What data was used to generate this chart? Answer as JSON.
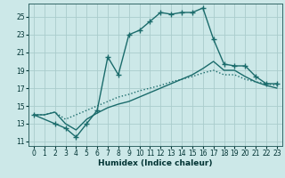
{
  "xlabel": "Humidex (Indice chaleur)",
  "background_color": "#cce8e8",
  "grid_color": "#aacccc",
  "line_color": "#1a6b6b",
  "xlim": [
    -0.5,
    23.5
  ],
  "ylim": [
    10.5,
    26.5
  ],
  "xticks": [
    0,
    1,
    2,
    3,
    4,
    5,
    6,
    7,
    8,
    9,
    10,
    11,
    12,
    13,
    14,
    15,
    16,
    17,
    18,
    19,
    20,
    21,
    22,
    23
  ],
  "yticks": [
    11,
    13,
    15,
    17,
    19,
    21,
    23,
    25
  ],
  "line_dotted_x": [
    0,
    1,
    2,
    3,
    4,
    5,
    6,
    7,
    8,
    9,
    10,
    11,
    12,
    13,
    14,
    15,
    16,
    17,
    18,
    19,
    20,
    21,
    22,
    23
  ],
  "line_dotted_y": [
    14.0,
    14.0,
    14.3,
    13.5,
    14.0,
    14.5,
    15.0,
    15.5,
    16.0,
    16.3,
    16.7,
    17.0,
    17.3,
    17.7,
    18.0,
    18.3,
    18.7,
    19.0,
    18.5,
    18.5,
    18.0,
    17.7,
    17.5,
    17.3
  ],
  "line_solid_x": [
    0,
    1,
    2,
    3,
    4,
    5,
    6,
    7,
    8,
    9,
    10,
    11,
    12,
    13,
    14,
    15,
    16,
    17,
    18,
    19,
    20,
    21,
    22,
    23
  ],
  "line_solid_y": [
    14.0,
    14.0,
    14.3,
    13.0,
    12.3,
    13.5,
    14.2,
    14.8,
    15.2,
    15.5,
    16.0,
    16.5,
    17.0,
    17.5,
    18.0,
    18.5,
    19.2,
    20.0,
    19.0,
    19.0,
    18.3,
    17.7,
    17.3,
    17.0
  ],
  "line_marked_x": [
    0,
    2,
    3,
    4,
    5,
    6,
    7,
    8,
    9,
    10,
    11,
    12,
    13,
    14,
    15,
    16,
    17,
    18,
    19,
    20,
    21,
    22,
    23
  ],
  "line_marked_y": [
    14.0,
    13.0,
    12.5,
    11.5,
    13.0,
    14.5,
    20.5,
    18.5,
    23.0,
    23.5,
    24.5,
    25.5,
    25.3,
    25.5,
    25.5,
    26.0,
    22.5,
    19.7,
    19.5,
    19.5,
    18.3,
    17.5,
    17.5
  ]
}
